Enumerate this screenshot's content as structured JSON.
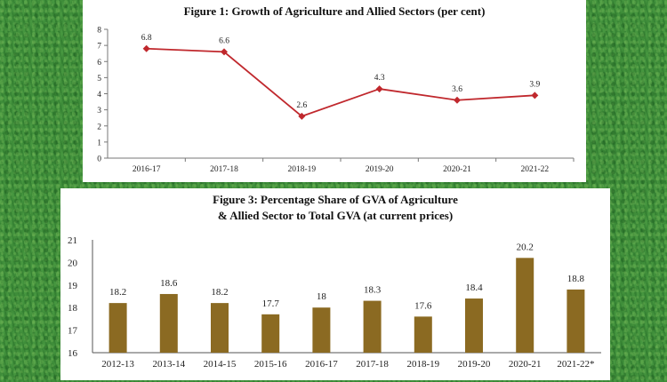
{
  "chart_data": [
    {
      "type": "line",
      "title": "Figure 1: Growth of Agriculture and Allied Sectors (per cent)",
      "categories": [
        "2016-17",
        "2017-18",
        "2018-19",
        "2019-20",
        "2020-21",
        "2021-22"
      ],
      "values": [
        6.8,
        6.6,
        2.6,
        4.3,
        3.6,
        3.9
      ],
      "data_labels": [
        "6.8",
        "6.6",
        "2.6",
        "4.3",
        "3.6",
        "3.9"
      ],
      "yticks": [
        "0",
        "1",
        "2",
        "3",
        "4",
        "5",
        "6",
        "7",
        "8"
      ],
      "ylim": [
        0,
        8
      ],
      "color": "#c0282d",
      "xlabel": "",
      "ylabel": ""
    },
    {
      "type": "bar",
      "title_lines": [
        "Figure 3: Percentage Share of GVA of Agriculture",
        "& Allied Sector to Total GVA (at current prices)"
      ],
      "categories": [
        "2012-13",
        "2013-14",
        "2014-15",
        "2015-16",
        "2016-17",
        "2017-18",
        "2018-19",
        "2019-20",
        "2020-21",
        "2021-22*"
      ],
      "values": [
        18.2,
        18.6,
        18.2,
        17.7,
        18,
        18.3,
        17.6,
        18.4,
        20.2,
        18.8
      ],
      "data_labels": [
        "18.2",
        "18.6",
        "18.2",
        "17.7",
        "18",
        "18.3",
        "17.6",
        "18.4",
        "20.2",
        "18.8"
      ],
      "yticks": [
        "16",
        "17",
        "18",
        "19",
        "20",
        "21"
      ],
      "ylim": [
        16,
        21
      ],
      "color": "#8b6a22",
      "xlabel": "",
      "ylabel": ""
    }
  ]
}
